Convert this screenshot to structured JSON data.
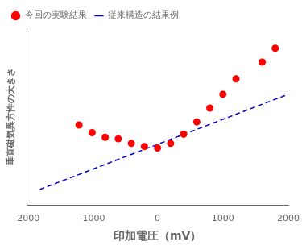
{
  "chart_data": {
    "type": "scatter",
    "xlabel": "印加電圧（mV）",
    "ylabel": "垂直磁気異方性の大きさ",
    "xlim": [
      -2000,
      2000
    ],
    "xticks": [
      -2000,
      -1000,
      0,
      1000,
      2000
    ],
    "ylim": [
      0.0,
      1.15
    ],
    "tick_labels": "x",
    "grid": false,
    "legend": "upper left",
    "series": [
      {
        "name": "今回の実験結果",
        "type": "scatter",
        "color": "#ff0000",
        "marker": "circle",
        "x": [
          -1200,
          -1000,
          -800,
          -600,
          -400,
          -200,
          0,
          200,
          400,
          600,
          800,
          1000,
          1200,
          1600,
          1800
        ],
        "values": [
          0.52,
          0.47,
          0.44,
          0.43,
          0.4,
          0.38,
          0.37,
          0.4,
          0.46,
          0.54,
          0.63,
          0.72,
          0.82,
          0.93,
          1.02
        ]
      },
      {
        "name": "従来構造の結果例",
        "type": "line",
        "color": "#0000cc",
        "line_style": "dashed",
        "x": [
          -1800,
          2000
        ],
        "values": [
          0.1,
          0.72
        ]
      }
    ]
  }
}
